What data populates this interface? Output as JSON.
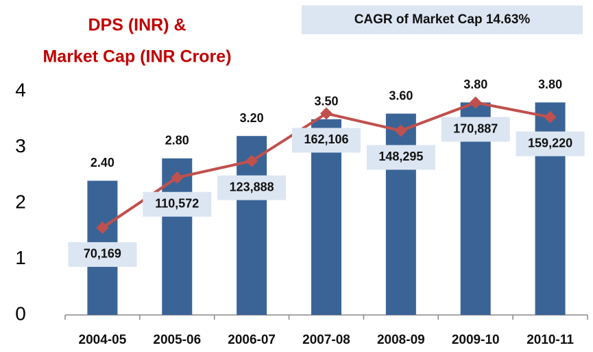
{
  "chart_data": {
    "type": "bar",
    "title": [
      "DPS  (INR) &",
      "Market Cap (INR Crore)"
    ],
    "annotation": "CAGR of Market Cap 14.63%",
    "categories": [
      "2004-05",
      "2005-06",
      "2006-07",
      "2007-08",
      "2008-09",
      "2009-10",
      "2010-11"
    ],
    "series": [
      {
        "type": "bar",
        "color": "#3a6496",
        "values": [
          2.4,
          2.8,
          3.2,
          3.5,
          3.6,
          3.8,
          3.8
        ],
        "value_labels": [
          "2.40",
          "2.80",
          "3.20",
          "3.50",
          "3.60",
          "3.80",
          "3.80"
        ]
      },
      {
        "type": "line",
        "axis": "y2",
        "color": "#c0504d",
        "values": [
          70169,
          110572,
          123888,
          162106,
          148295,
          170887,
          159220
        ],
        "value_labels": [
          "70,169",
          "110,572",
          "123,888",
          "162,106",
          "148,295",
          "170,887",
          "159,220"
        ]
      }
    ],
    "ylim": [
      0,
      4
    ],
    "yticks": [
      0,
      1,
      2,
      3,
      4
    ],
    "y2lim": [
      0,
      180000
    ]
  }
}
